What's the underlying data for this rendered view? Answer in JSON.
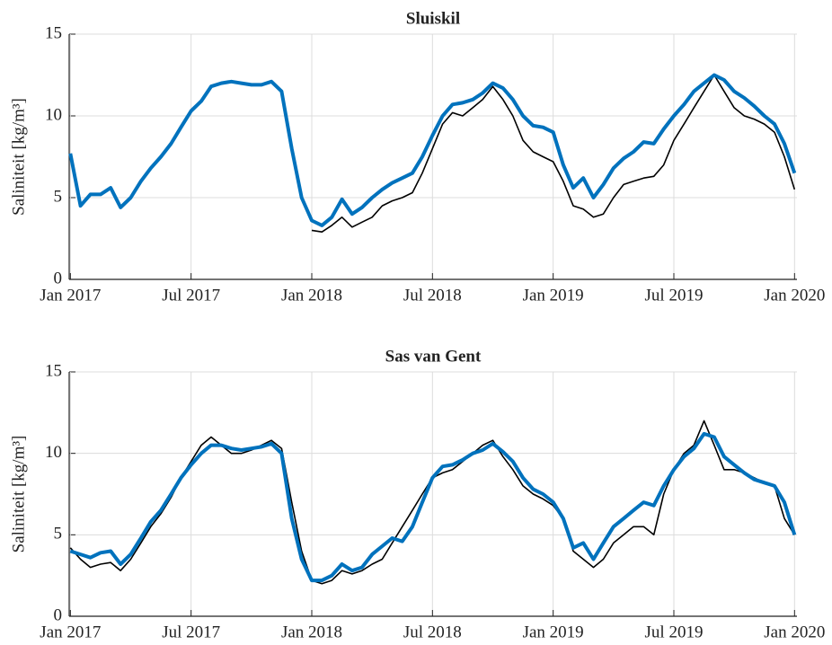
{
  "chart_data": [
    {
      "type": "line",
      "title": "Sluiskil",
      "ylabel": "Saliniteit [kg/m³]",
      "x": [
        2017,
        2017.042,
        2017.083,
        2017.125,
        2017.167,
        2017.208,
        2017.25,
        2017.292,
        2017.333,
        2017.375,
        2017.417,
        2017.458,
        2017.5,
        2017.542,
        2017.583,
        2017.625,
        2017.667,
        2017.708,
        2017.75,
        2017.792,
        2017.833,
        2017.875,
        2017.917,
        2017.958,
        2018,
        2018.042,
        2018.083,
        2018.125,
        2018.167,
        2018.208,
        2018.25,
        2018.292,
        2018.333,
        2018.375,
        2018.417,
        2018.458,
        2018.5,
        2018.542,
        2018.583,
        2018.625,
        2018.667,
        2018.708,
        2018.75,
        2018.792,
        2018.833,
        2018.875,
        2018.917,
        2018.958,
        2019,
        2019.042,
        2019.083,
        2019.125,
        2019.167,
        2019.208,
        2019.25,
        2019.292,
        2019.333,
        2019.375,
        2019.417,
        2019.458,
        2019.5,
        2019.542,
        2019.583,
        2019.625,
        2019.667,
        2019.708,
        2019.75,
        2019.792,
        2019.833,
        2019.875,
        2019.917,
        2019.958,
        2020
      ],
      "series": [
        {
          "color": "#000000",
          "values": [
            null,
            null,
            null,
            null,
            null,
            null,
            null,
            null,
            null,
            null,
            null,
            null,
            null,
            null,
            null,
            null,
            null,
            null,
            null,
            null,
            null,
            null,
            null,
            null,
            3.0,
            2.9,
            3.3,
            3.8,
            3.2,
            3.5,
            3.8,
            4.5,
            4.8,
            5.0,
            5.3,
            6.5,
            8.0,
            9.5,
            10.2,
            10.0,
            10.5,
            11.0,
            11.8,
            11.0,
            10.0,
            8.5,
            7.8,
            7.5,
            7.2,
            6.0,
            4.5,
            4.3,
            3.8,
            4.0,
            5.0,
            5.8,
            6.0,
            6.2,
            6.3,
            7.0,
            8.5,
            9.5,
            10.5,
            11.5,
            12.5,
            11.5,
            10.5,
            10.0,
            9.8,
            9.5,
            9.0,
            7.5,
            5.5
          ]
        },
        {
          "color": "#0072bd",
          "values": [
            7.7,
            4.5,
            5.2,
            5.2,
            5.6,
            4.4,
            5.0,
            6.0,
            6.8,
            7.5,
            8.3,
            9.3,
            10.3,
            10.9,
            11.8,
            12.0,
            12.1,
            12.0,
            11.9,
            11.9,
            12.1,
            11.5,
            8.0,
            5.0,
            3.6,
            3.3,
            3.8,
            4.9,
            4.0,
            4.4,
            5.0,
            5.5,
            5.9,
            6.2,
            6.5,
            7.5,
            8.8,
            10.0,
            10.7,
            10.8,
            11.0,
            11.4,
            12.0,
            11.7,
            11.0,
            10.0,
            9.4,
            9.3,
            9.0,
            7.0,
            5.6,
            6.2,
            5.0,
            5.8,
            6.8,
            7.4,
            7.8,
            8.4,
            8.3,
            9.2,
            10.0,
            10.7,
            11.5,
            12.0,
            12.5,
            12.2,
            11.5,
            11.1,
            10.6,
            10.0,
            9.5,
            8.3,
            6.5
          ]
        }
      ],
      "xlim": [
        2016.995,
        2020.01
      ],
      "ylim": [
        0,
        15
      ],
      "yticks": [
        0,
        5,
        10,
        15
      ],
      "xticks": [
        {
          "value": 2017,
          "label": "Jan 2017"
        },
        {
          "value": 2017.5,
          "label": "Jul 2017"
        },
        {
          "value": 2018,
          "label": "Jan 2018"
        },
        {
          "value": 2018.5,
          "label": "Jul 2018"
        },
        {
          "value": 2019,
          "label": "Jan 2019"
        },
        {
          "value": 2019.5,
          "label": "Jul 2019"
        },
        {
          "value": 2020,
          "label": "Jan 2020"
        }
      ],
      "grid": true
    },
    {
      "type": "line",
      "title": "Sas van Gent",
      "ylabel": "Saliniteit [kg/m³]",
      "x": [
        2017,
        2017.042,
        2017.083,
        2017.125,
        2017.167,
        2017.208,
        2017.25,
        2017.292,
        2017.333,
        2017.375,
        2017.417,
        2017.458,
        2017.5,
        2017.542,
        2017.583,
        2017.625,
        2017.667,
        2017.708,
        2017.75,
        2017.792,
        2017.833,
        2017.875,
        2017.917,
        2017.958,
        2018,
        2018.042,
        2018.083,
        2018.125,
        2018.167,
        2018.208,
        2018.25,
        2018.292,
        2018.333,
        2018.375,
        2018.417,
        2018.458,
        2018.5,
        2018.542,
        2018.583,
        2018.625,
        2018.667,
        2018.708,
        2018.75,
        2018.792,
        2018.833,
        2018.875,
        2018.917,
        2018.958,
        2019,
        2019.042,
        2019.083,
        2019.125,
        2019.167,
        2019.208,
        2019.25,
        2019.292,
        2019.333,
        2019.375,
        2019.417,
        2019.458,
        2019.5,
        2019.542,
        2019.583,
        2019.625,
        2019.667,
        2019.708,
        2019.75,
        2019.792,
        2019.833,
        2019.875,
        2019.917,
        2019.958,
        2020
      ],
      "series": [
        {
          "color": "#000000",
          "values": [
            4.2,
            3.5,
            3.0,
            3.2,
            3.3,
            2.8,
            3.5,
            4.5,
            5.5,
            6.3,
            7.3,
            8.5,
            9.5,
            10.5,
            11.0,
            10.5,
            10.0,
            10.0,
            10.2,
            10.5,
            10.8,
            10.3,
            7.0,
            4.0,
            2.2,
            2.0,
            2.2,
            2.8,
            2.6,
            2.8,
            3.2,
            3.5,
            4.5,
            5.5,
            6.5,
            7.5,
            8.5,
            8.8,
            9.0,
            9.5,
            10.0,
            10.5,
            10.8,
            9.8,
            9.0,
            8.0,
            7.5,
            7.2,
            6.8,
            6.0,
            4.0,
            3.5,
            3.0,
            3.5,
            4.5,
            5.0,
            5.5,
            5.5,
            5.0,
            7.5,
            9.0,
            10.0,
            10.5,
            12.0,
            10.5,
            9.0,
            9.0,
            8.8,
            8.5,
            8.2,
            8.0,
            6.0,
            5.0
          ]
        },
        {
          "color": "#0072bd",
          "values": [
            4.0,
            3.8,
            3.6,
            3.9,
            4.0,
            3.2,
            3.8,
            4.8,
            5.8,
            6.5,
            7.5,
            8.5,
            9.3,
            10.0,
            10.5,
            10.5,
            10.3,
            10.2,
            10.3,
            10.4,
            10.6,
            10.0,
            6.0,
            3.5,
            2.2,
            2.2,
            2.5,
            3.2,
            2.8,
            3.0,
            3.8,
            4.3,
            4.8,
            4.6,
            5.5,
            7.0,
            8.5,
            9.2,
            9.3,
            9.6,
            10.0,
            10.2,
            10.6,
            10.1,
            9.5,
            8.5,
            7.8,
            7.5,
            7.0,
            6.0,
            4.2,
            4.5,
            3.5,
            4.5,
            5.5,
            6.0,
            6.5,
            7.0,
            6.8,
            8.0,
            9.0,
            9.8,
            10.3,
            11.2,
            11.0,
            9.8,
            9.3,
            8.8,
            8.4,
            8.2,
            8.0,
            7.0,
            5.0
          ]
        }
      ],
      "xlim": [
        2016.995,
        2020.01
      ],
      "ylim": [
        0,
        15
      ],
      "yticks": [
        0,
        5,
        10,
        15
      ],
      "xticks": [
        {
          "value": 2017,
          "label": "Jan 2017"
        },
        {
          "value": 2017.5,
          "label": "Jul 2017"
        },
        {
          "value": 2018,
          "label": "Jan 2018"
        },
        {
          "value": 2018.5,
          "label": "Jul 2018"
        },
        {
          "value": 2019,
          "label": "Jan 2019"
        },
        {
          "value": 2019.5,
          "label": "Jul 2019"
        },
        {
          "value": 2020,
          "label": "Jan 2020"
        }
      ],
      "grid": true
    }
  ]
}
